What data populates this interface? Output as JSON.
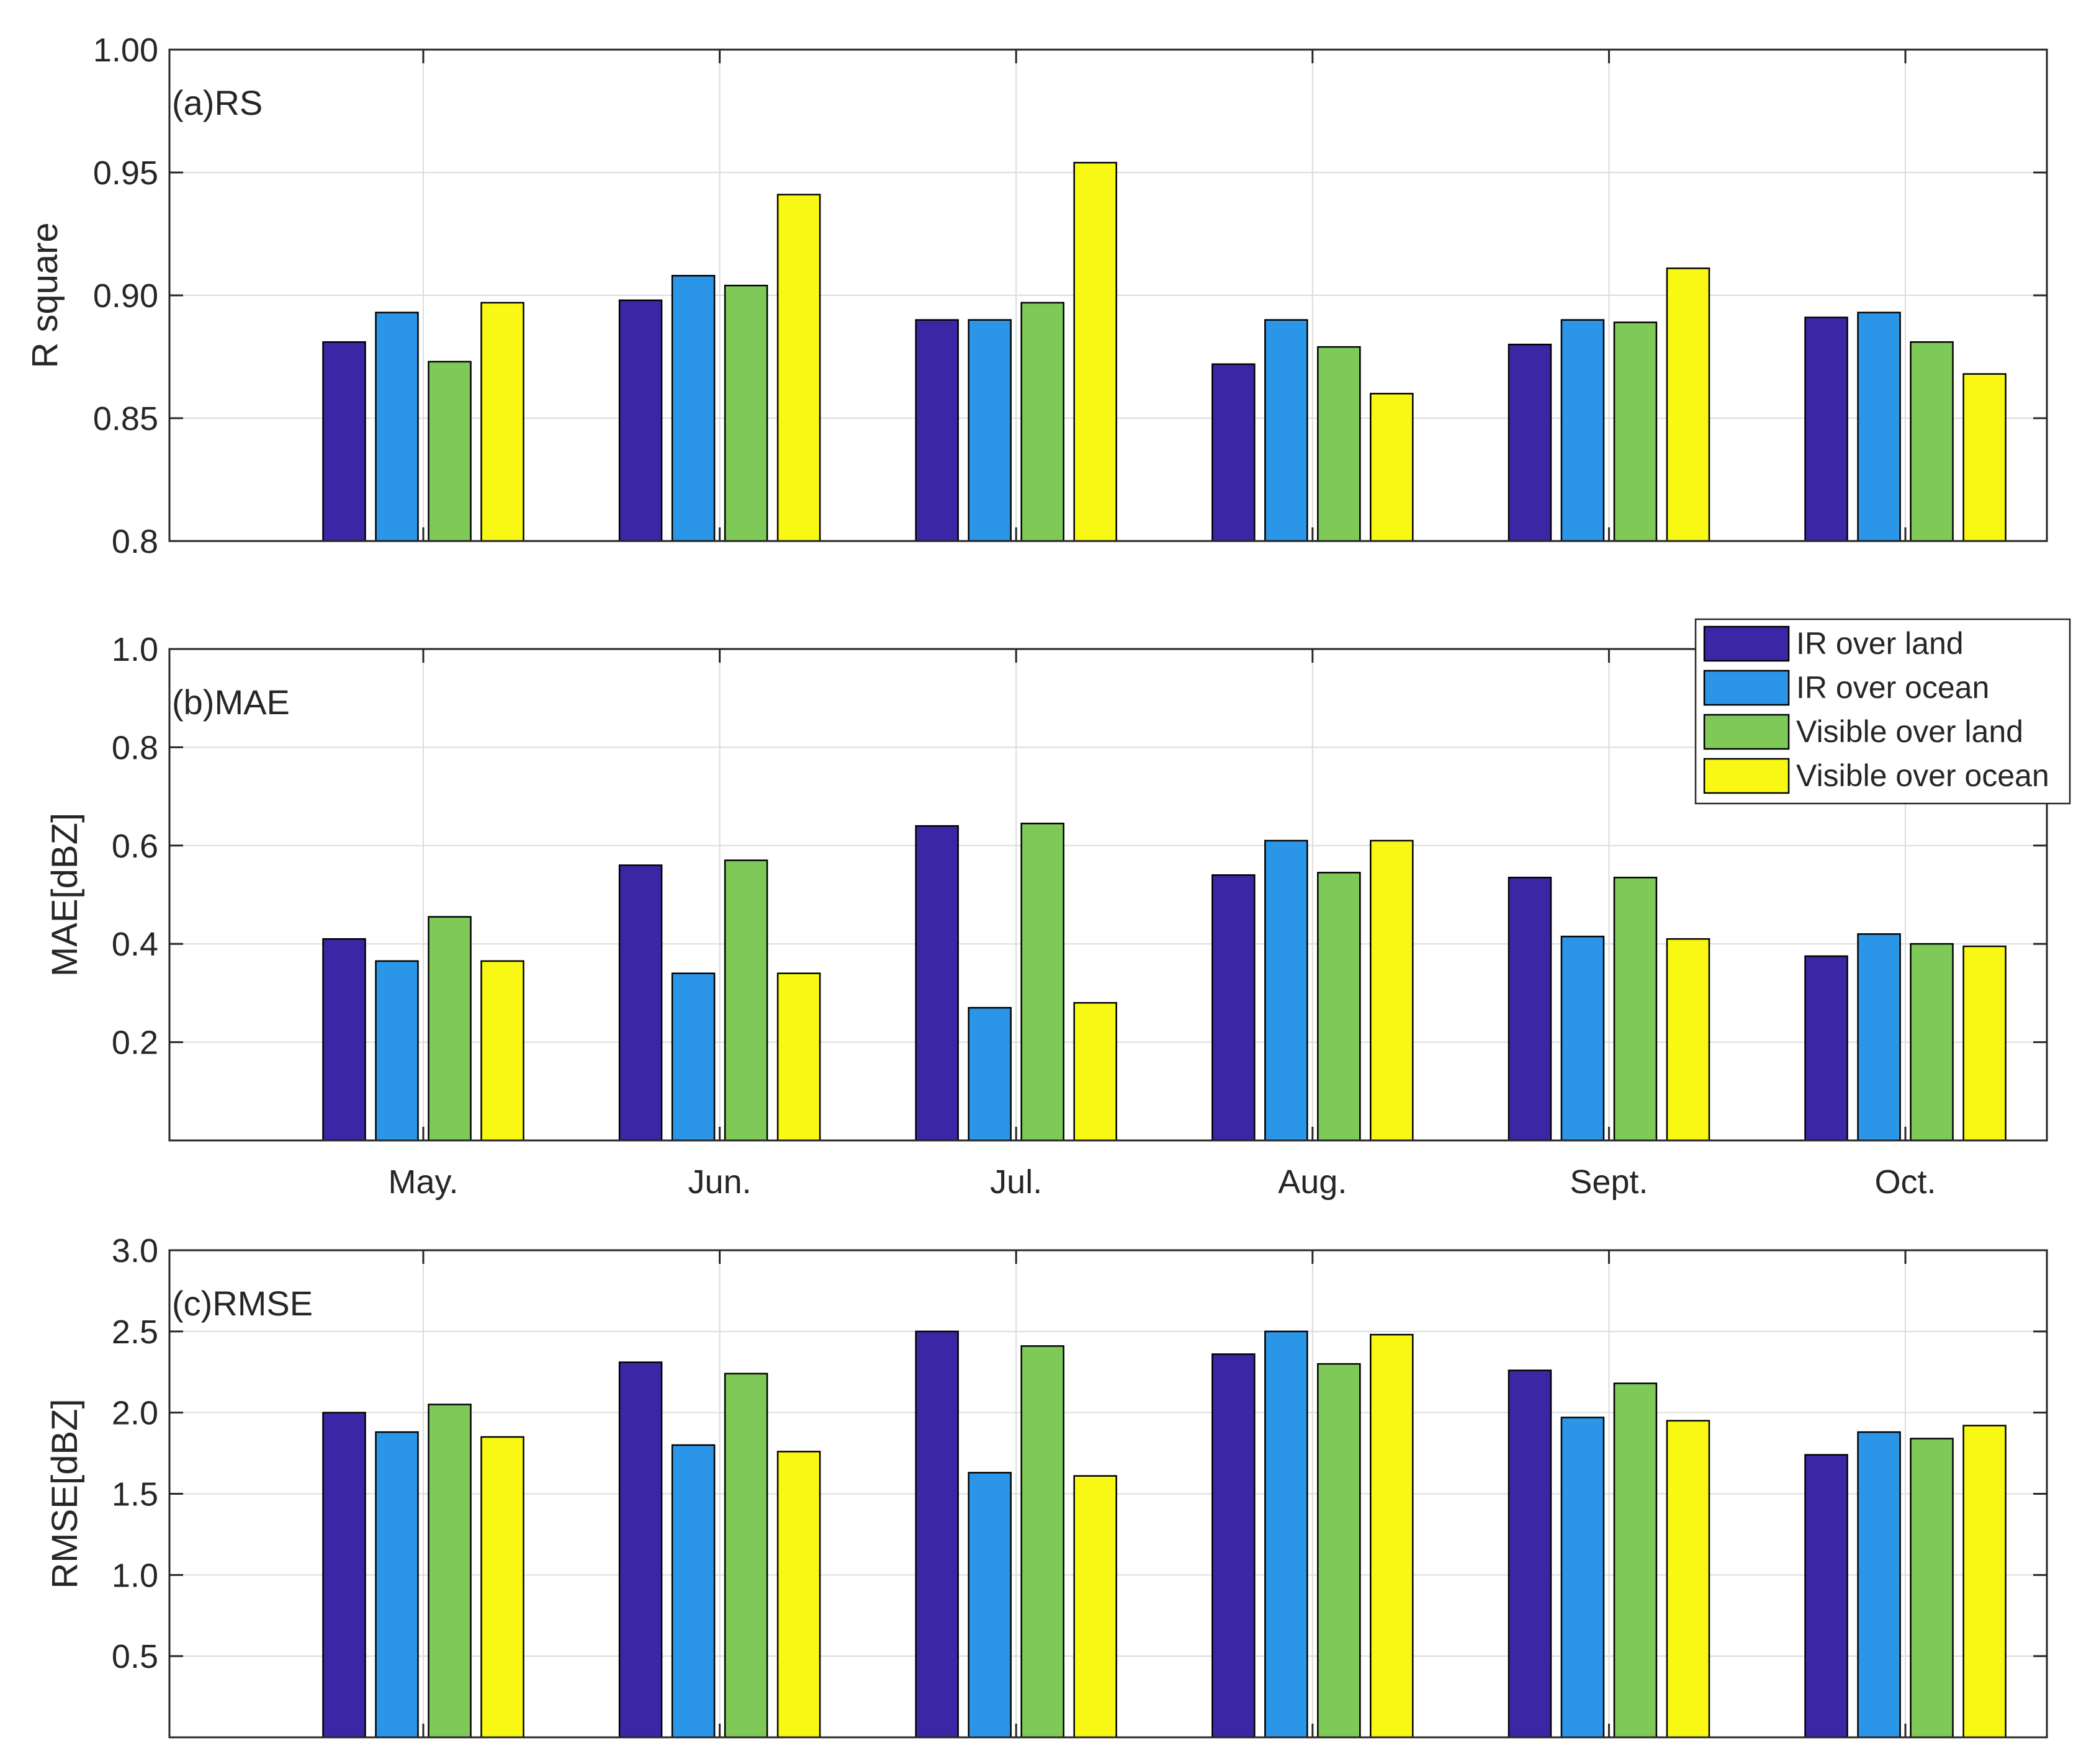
{
  "chart_data": {
    "type": "bar",
    "categories": [
      "May.",
      "Jun.",
      "Jul.",
      "Aug.",
      "Sept.",
      "Oct."
    ],
    "series_names": [
      "IR over land",
      "IR over ocean",
      "Visible over land",
      "Visible over ocean"
    ],
    "series_colors": [
      "#3b27a5",
      "#2b95e8",
      "#7ec957",
      "#f8f814"
    ],
    "legend_position": "top-right of panel (b)",
    "grid": true,
    "panels": [
      {
        "id": "rs",
        "label": "(a)RS",
        "ylabel": "R square",
        "ylim": [
          0.8,
          1.0
        ],
        "yticks": [
          "0.8",
          "0.85",
          "0.90",
          "0.95",
          "1.00"
        ],
        "yvalues": [
          0.8,
          0.85,
          0.9,
          0.95,
          1.0
        ],
        "show_xticklabels": false,
        "series": [
          {
            "name": "IR over land",
            "values": [
              0.881,
              0.898,
              0.89,
              0.872,
              0.88,
              0.891
            ]
          },
          {
            "name": "IR over ocean",
            "values": [
              0.893,
              0.908,
              0.89,
              0.89,
              0.89,
              0.893
            ]
          },
          {
            "name": "Visible over land",
            "values": [
              0.873,
              0.904,
              0.897,
              0.879,
              0.889,
              0.881
            ]
          },
          {
            "name": "Visible over ocean",
            "values": [
              0.897,
              0.941,
              0.954,
              0.86,
              0.911,
              0.868
            ]
          }
        ]
      },
      {
        "id": "mae",
        "label": "(b)MAE",
        "ylabel": "MAE[dBZ]",
        "ylim": [
          0.0,
          1.0
        ],
        "yticks": [
          "0.2",
          "0.4",
          "0.6",
          "0.8",
          "1.0"
        ],
        "yvalues": [
          0.2,
          0.4,
          0.6,
          0.8,
          1.0
        ],
        "show_xticklabels": true,
        "series": [
          {
            "name": "IR over land",
            "values": [
              0.41,
              0.56,
              0.64,
              0.54,
              0.535,
              0.375
            ]
          },
          {
            "name": "IR over ocean",
            "values": [
              0.365,
              0.34,
              0.27,
              0.61,
              0.415,
              0.42
            ]
          },
          {
            "name": "Visible over land",
            "values": [
              0.455,
              0.57,
              0.645,
              0.545,
              0.535,
              0.4
            ]
          },
          {
            "name": "Visible over ocean",
            "values": [
              0.365,
              0.34,
              0.28,
              0.61,
              0.41,
              0.395
            ]
          }
        ]
      },
      {
        "id": "rmse",
        "label": "(c)RMSE",
        "ylabel": "RMSE[dBZ]",
        "ylim": [
          0.0,
          3.0
        ],
        "yticks": [
          "0.5",
          "1.0",
          "1.5",
          "2.0",
          "2.5",
          "3.0"
        ],
        "yvalues": [
          0.5,
          1.0,
          1.5,
          2.0,
          2.5,
          3.0
        ],
        "show_xticklabels": false,
        "series": [
          {
            "name": "IR over land",
            "values": [
              2.0,
              2.31,
              2.5,
              2.36,
              2.26,
              1.74
            ]
          },
          {
            "name": "IR over ocean",
            "values": [
              1.88,
              1.8,
              1.63,
              2.5,
              1.97,
              1.88
            ]
          },
          {
            "name": "Visible over land",
            "values": [
              2.05,
              2.24,
              2.41,
              2.3,
              2.18,
              1.84
            ]
          },
          {
            "name": "Visible over ocean",
            "values": [
              1.85,
              1.76,
              1.61,
              2.48,
              1.95,
              1.92
            ]
          }
        ]
      }
    ]
  }
}
